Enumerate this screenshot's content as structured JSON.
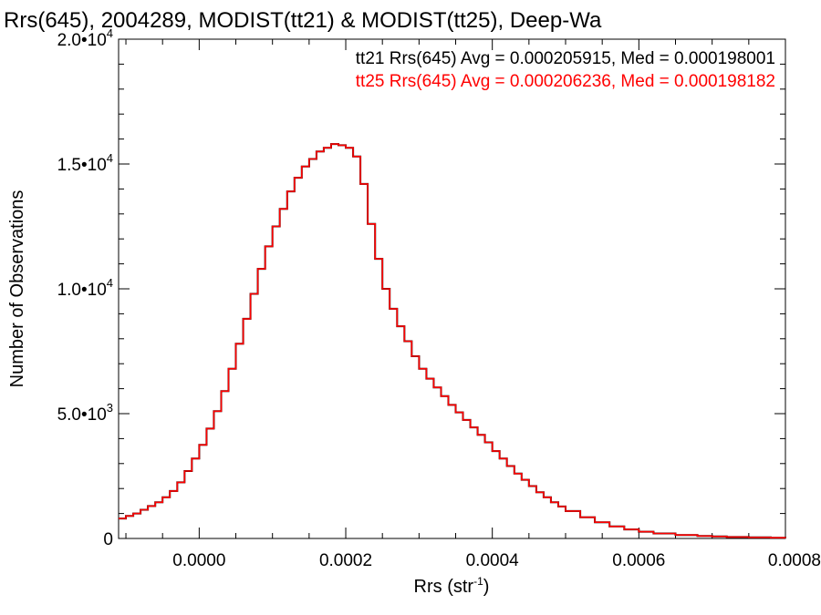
{
  "chart_data": {
    "type": "line",
    "title": "Rrs(645), 2004289, MODIST(tt21) & MODIST(tt25), Deep-Wa",
    "xlabel": "Rrs (str",
    "xlabel_sup": "-1",
    "xlabel_close": ")",
    "ylabel": "Number of Observations",
    "xlim": [
      -0.00011,
      0.0008
    ],
    "ylim": [
      0,
      20000
    ],
    "x_ticks": [
      {
        "value": 0.0,
        "label": "0.0000"
      },
      {
        "value": 0.0002,
        "label": "0.0002"
      },
      {
        "value": 0.0004,
        "label": "0.0004"
      },
      {
        "value": 0.0006,
        "label": "0.0006"
      },
      {
        "value": 0.0008,
        "label": "0.0008"
      }
    ],
    "y_ticks": [
      {
        "value": 0,
        "mant": "0",
        "exp": ""
      },
      {
        "value": 5000,
        "mant": "5.0•10",
        "exp": "3"
      },
      {
        "value": 10000,
        "mant": "1.0•10",
        "exp": "4"
      },
      {
        "value": 15000,
        "mant": "1.5•10",
        "exp": "4"
      },
      {
        "value": 20000,
        "mant": "2.0•10",
        "exp": "4"
      }
    ],
    "grid": false,
    "legend_position": "top-right",
    "x": [
      -0.00011,
      -0.0001,
      -9e-05,
      -8e-05,
      -7e-05,
      -6e-05,
      -5e-05,
      -4e-05,
      -3e-05,
      -2e-05,
      -1e-05,
      0.0,
      1e-05,
      2e-05,
      3e-05,
      4e-05,
      5e-05,
      6e-05,
      7e-05,
      8e-05,
      9e-05,
      0.0001,
      0.00011,
      0.00012,
      0.00013,
      0.00014,
      0.00015,
      0.00016,
      0.00017,
      0.00018,
      0.00019,
      0.0002,
      0.00021,
      0.00022,
      0.00023,
      0.00024,
      0.00025,
      0.00026,
      0.00027,
      0.00028,
      0.00029,
      0.0003,
      0.00031,
      0.00032,
      0.00033,
      0.00034,
      0.00035,
      0.00036,
      0.00037,
      0.00038,
      0.00039,
      0.0004,
      0.00041,
      0.00042,
      0.00043,
      0.00044,
      0.00045,
      0.00046,
      0.00047,
      0.00048,
      0.00049,
      0.0005,
      0.00052,
      0.00054,
      0.00056,
      0.00058,
      0.0006,
      0.00062,
      0.00065,
      0.00068,
      0.0007,
      0.00072,
      0.00075,
      0.00078,
      0.0008
    ],
    "series": [
      {
        "name": "tt21",
        "color": "#000000",
        "values": [
          800,
          900,
          1000,
          1150,
          1300,
          1450,
          1650,
          1900,
          2250,
          2700,
          3200,
          3750,
          4400,
          5100,
          5900,
          6800,
          7800,
          8800,
          9800,
          10800,
          11700,
          12500,
          13200,
          13900,
          14450,
          14900,
          15200,
          15500,
          15650,
          15800,
          15750,
          15650,
          15300,
          14200,
          12600,
          11200,
          10000,
          9200,
          8500,
          7900,
          7300,
          6800,
          6400,
          6050,
          5700,
          5350,
          5050,
          4750,
          4450,
          4150,
          3850,
          3500,
          3200,
          2900,
          2600,
          2350,
          2100,
          1850,
          1650,
          1450,
          1280,
          1100,
          850,
          650,
          480,
          360,
          270,
          200,
          140,
          100,
          80,
          60,
          45,
          30,
          20
        ]
      },
      {
        "name": "tt25",
        "color": "#ff0000",
        "values": [
          800,
          900,
          1000,
          1150,
          1300,
          1450,
          1650,
          1900,
          2250,
          2700,
          3200,
          3750,
          4400,
          5100,
          5900,
          6800,
          7800,
          8800,
          9800,
          10800,
          11700,
          12500,
          13200,
          13900,
          14450,
          14900,
          15200,
          15500,
          15650,
          15800,
          15750,
          15650,
          15300,
          14200,
          12600,
          11200,
          10000,
          9200,
          8500,
          7900,
          7300,
          6800,
          6400,
          6050,
          5700,
          5350,
          5050,
          4750,
          4450,
          4150,
          3850,
          3500,
          3200,
          2900,
          2600,
          2350,
          2100,
          1850,
          1650,
          1450,
          1280,
          1100,
          850,
          650,
          480,
          360,
          270,
          200,
          140,
          100,
          80,
          60,
          45,
          30,
          20
        ]
      }
    ],
    "legend": [
      {
        "text": "tt21 Rrs(645) Avg = 0.000205915, Med = 0.000198001",
        "color": "#000000"
      },
      {
        "text": "tt25 Rrs(645) Avg = 0.000206236, Med = 0.000198182",
        "color": "#ff0000"
      }
    ]
  }
}
